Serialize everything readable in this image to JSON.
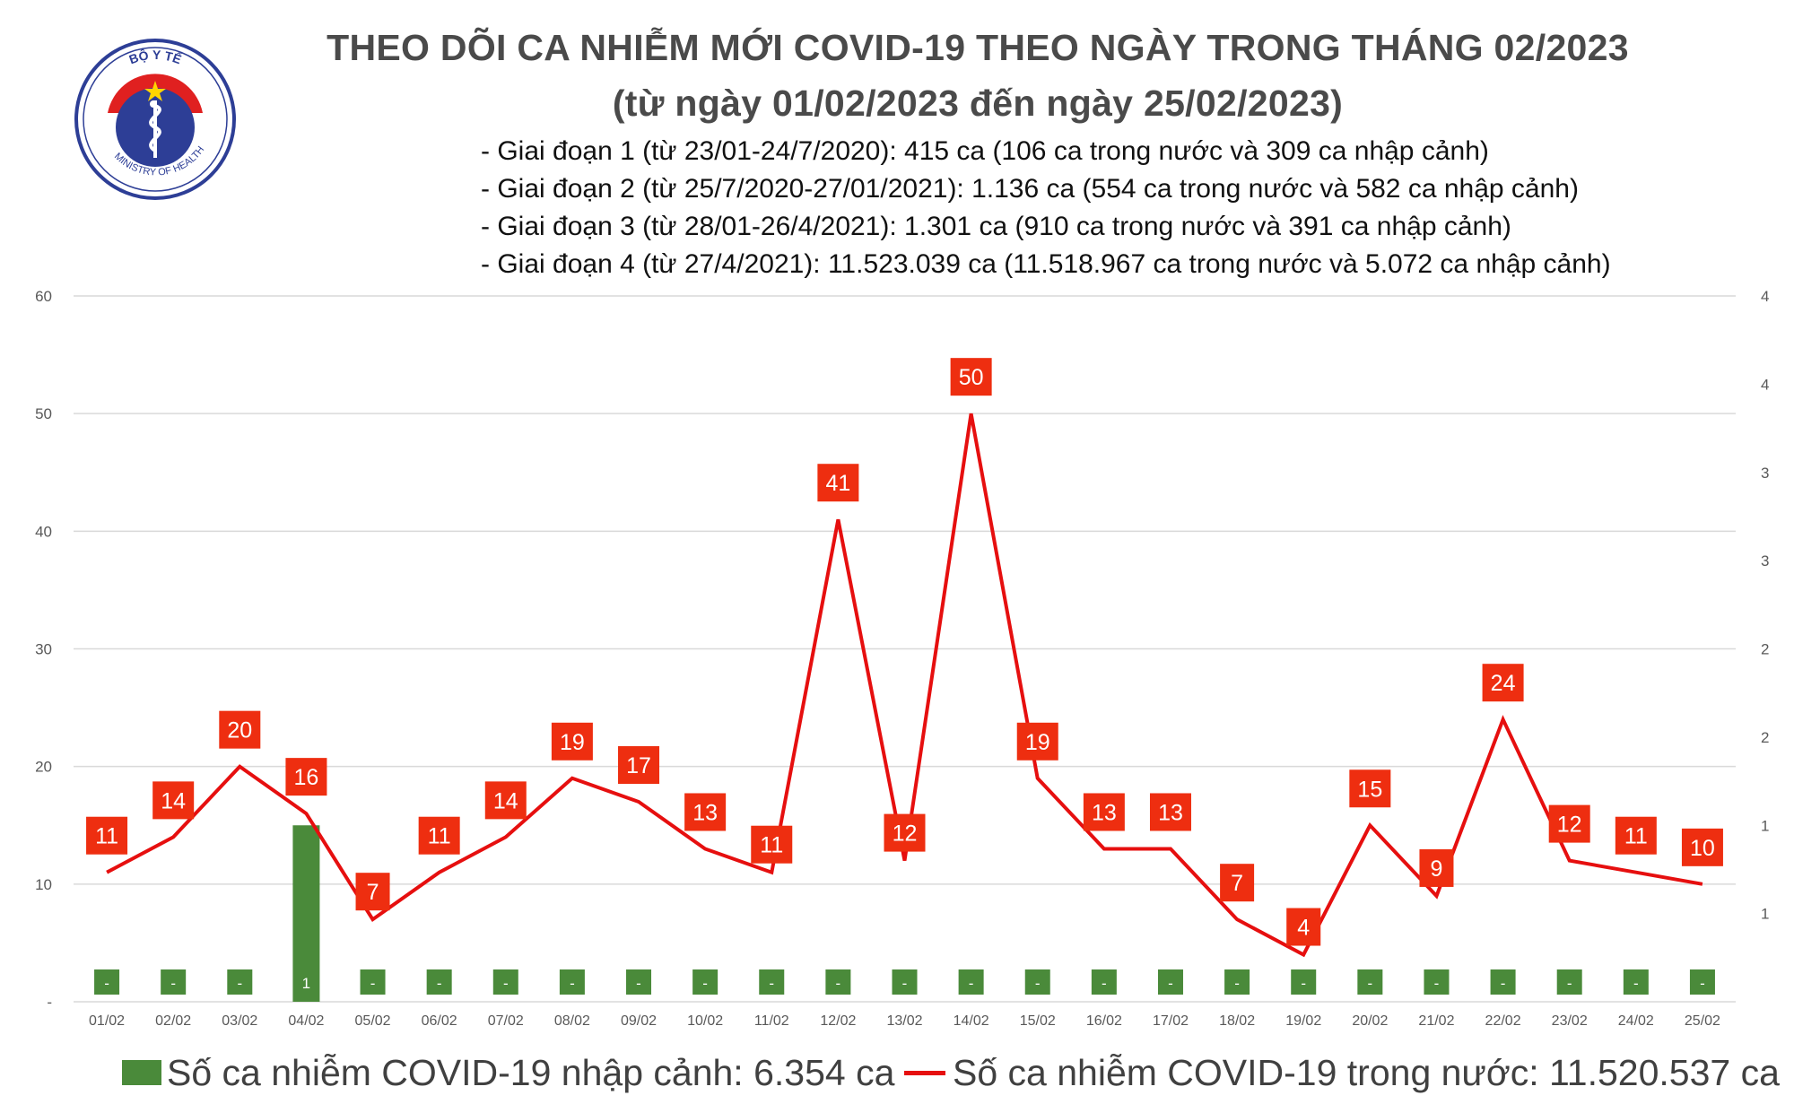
{
  "header": {
    "title_line1": "THEO DÕI CA NHIỄM MỚI COVID-19 THEO NGÀY TRONG THÁNG 02/2023",
    "title_line2": "(từ ngày 01/02/2023 đến ngày 25/02/2023)"
  },
  "logo": {
    "top_text": "BỘ Y TẾ",
    "bottom_text": "MINISTRY OF HEALTH"
  },
  "stats": [
    "- Giai đoạn 1 (từ 23/01-24/7/2020): 415 ca (106 ca trong nước và 309 ca nhập cảnh)",
    "- Giai đoạn 2 (từ 25/7/2020-27/01/2021): 1.136 ca (554 ca trong nước và 582 ca nhập cảnh)",
    "- Giai đoạn 3 (từ 28/01-26/4/2021): 1.301 ca (910 ca trong nước và 391 ca nhập cảnh)",
    "- Giai đoạn 4 (từ 27/4/2021): 11.523.039 ca (11.518.967 ca trong nước và 5.072 ca nhập cảnh)"
  ],
  "legend": {
    "imported": "Số ca nhiễm COVID-19 nhập cảnh: 6.354 ca",
    "domestic": "Số ca nhiễm COVID-19 trong nước: 11.520.537 ca"
  },
  "colors": {
    "line": "#e60f0f",
    "label_box": "#ee2e10",
    "bar": "#4a8a3a",
    "grid": "#d9d9d9",
    "axis_text": "#595959"
  },
  "chart_data": {
    "type": "bar+line",
    "title": "THEO DÕI CA NHIỄM MỚI COVID-19 THEO NGÀY TRONG THÁNG 02/2023",
    "categories": [
      "01/02",
      "02/02",
      "03/02",
      "04/02",
      "05/02",
      "06/02",
      "07/02",
      "08/02",
      "09/02",
      "10/02",
      "11/02",
      "12/02",
      "13/02",
      "14/02",
      "15/02",
      "16/02",
      "17/02",
      "18/02",
      "19/02",
      "20/02",
      "21/02",
      "22/02",
      "23/02",
      "24/02",
      "25/02"
    ],
    "left_axis": {
      "ticks": [
        "-",
        "10",
        "20",
        "30",
        "40",
        "50",
        "60"
      ],
      "ylim": [
        0,
        60
      ]
    },
    "right_axis": {
      "ticks": [
        "1",
        "1",
        "2",
        "2",
        "3",
        "3",
        "4",
        "4"
      ],
      "ylim": [
        0,
        4
      ]
    },
    "series": [
      {
        "name": "Số ca nhiễm COVID-19 trong nước",
        "type": "line",
        "axis": "left",
        "values": [
          11,
          14,
          20,
          16,
          7,
          11,
          14,
          19,
          17,
          13,
          11,
          41,
          12,
          50,
          19,
          13,
          13,
          7,
          4,
          15,
          9,
          24,
          12,
          11,
          10
        ]
      },
      {
        "name": "Số ca nhiễm COVID-19 nhập cảnh",
        "type": "bar",
        "axis": "right",
        "values": [
          0,
          0,
          0,
          1,
          0,
          0,
          0,
          0,
          0,
          0,
          0,
          0,
          0,
          0,
          0,
          0,
          0,
          0,
          0,
          0,
          0,
          0,
          0,
          0,
          0
        ],
        "labels": [
          "-",
          "-",
          "-",
          "1",
          "-",
          "-",
          "-",
          "-",
          "-",
          "-",
          "-",
          "-",
          "-",
          "-",
          "-",
          "-",
          "-",
          "-",
          "-",
          "-",
          "-",
          "-",
          "-",
          "-",
          "-"
        ]
      }
    ]
  }
}
